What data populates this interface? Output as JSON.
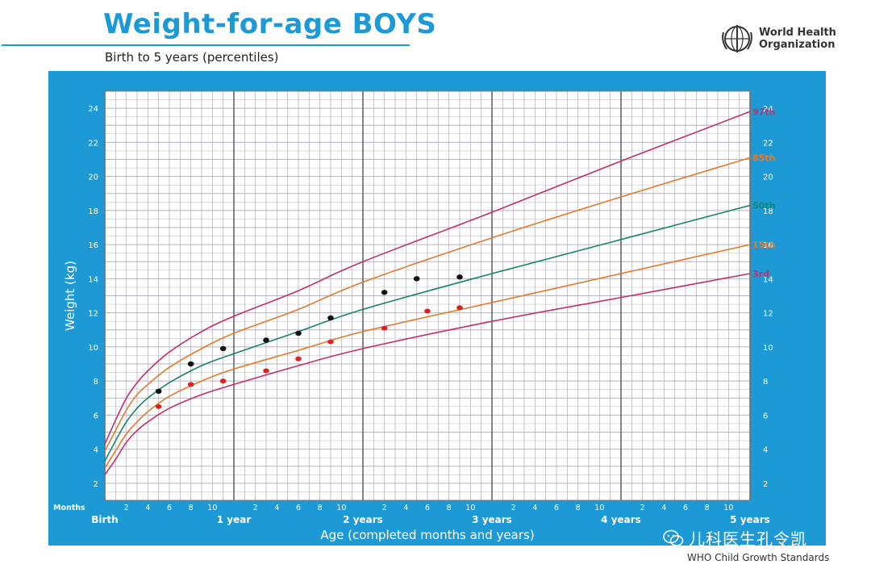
{
  "header": {
    "title": "Weight-for-age BOYS",
    "subtitle": "Birth to 5 years (percentiles)",
    "org_line1": "World Health",
    "org_line2": "Organization"
  },
  "footer": {
    "standards": "WHO Child Growth Standards",
    "watermark": "儿科医生孔令凯"
  },
  "colors": {
    "panel": "#1d9ad6",
    "grid": "#b9b0c0",
    "p3": "#c0306a",
    "p15": "#e07b2e",
    "p50": "#17836a",
    "p85": "#e07b2e",
    "p97": "#c0306a",
    "measure_black": "#111111",
    "measure_red": "#e02020"
  },
  "chart_data": {
    "type": "line",
    "title": "Weight-for-age BOYS",
    "xlabel": "Age (completed months and years)",
    "ylabel": "Weight (kg)",
    "xlim": [
      0,
      60
    ],
    "ylim": [
      1,
      25
    ],
    "grid": true,
    "months_label": "Months",
    "y_ticks": [
      2,
      4,
      6,
      8,
      10,
      12,
      14,
      16,
      18,
      20,
      22,
      24
    ],
    "x_month_ticks": [
      {
        "x": 2,
        "label": "2"
      },
      {
        "x": 4,
        "label": "4"
      },
      {
        "x": 6,
        "label": "6"
      },
      {
        "x": 8,
        "label": "8"
      },
      {
        "x": 10,
        "label": "10"
      },
      {
        "x": 14,
        "label": "2"
      },
      {
        "x": 16,
        "label": "4"
      },
      {
        "x": 18,
        "label": "6"
      },
      {
        "x": 20,
        "label": "8"
      },
      {
        "x": 22,
        "label": "10"
      },
      {
        "x": 26,
        "label": "2"
      },
      {
        "x": 28,
        "label": "4"
      },
      {
        "x": 30,
        "label": "6"
      },
      {
        "x": 32,
        "label": "8"
      },
      {
        "x": 34,
        "label": "10"
      },
      {
        "x": 38,
        "label": "2"
      },
      {
        "x": 40,
        "label": "4"
      },
      {
        "x": 42,
        "label": "6"
      },
      {
        "x": 44,
        "label": "8"
      },
      {
        "x": 46,
        "label": "10"
      },
      {
        "x": 50,
        "label": "2"
      },
      {
        "x": 52,
        "label": "4"
      },
      {
        "x": 54,
        "label": "6"
      },
      {
        "x": 56,
        "label": "8"
      },
      {
        "x": 58,
        "label": "10"
      }
    ],
    "x_year_labels": [
      {
        "x": 0,
        "label": "Birth"
      },
      {
        "x": 12,
        "label": "1 year"
      },
      {
        "x": 24,
        "label": "2 years"
      },
      {
        "x": 36,
        "label": "3 years"
      },
      {
        "x": 48,
        "label": "4 years"
      },
      {
        "x": 60,
        "label": "5 years"
      }
    ],
    "x": [
      0,
      1,
      2,
      3,
      4,
      6,
      9,
      12,
      18,
      24,
      36,
      48,
      60
    ],
    "series": [
      {
        "name": "97th",
        "color_key": "p97",
        "values": [
          4.3,
          5.7,
          7.0,
          7.9,
          8.6,
          9.7,
          10.9,
          11.8,
          13.3,
          15.0,
          17.9,
          20.9,
          23.8
        ]
      },
      {
        "name": "85th",
        "color_key": "p85",
        "values": [
          3.9,
          5.1,
          6.3,
          7.2,
          7.8,
          8.8,
          9.9,
          10.8,
          12.2,
          13.8,
          16.4,
          18.8,
          21.1
        ]
      },
      {
        "name": "50th",
        "color_key": "p50",
        "values": [
          3.3,
          4.5,
          5.6,
          6.4,
          7.0,
          7.9,
          8.9,
          9.6,
          10.9,
          12.2,
          14.3,
          16.3,
          18.3
        ]
      },
      {
        "name": "15th",
        "color_key": "p15",
        "values": [
          2.9,
          3.9,
          4.9,
          5.6,
          6.2,
          7.1,
          8.0,
          8.7,
          9.8,
          10.9,
          12.6,
          14.3,
          16.0
        ]
      },
      {
        "name": "3rd",
        "color_key": "p3",
        "values": [
          2.5,
          3.4,
          4.4,
          5.1,
          5.6,
          6.4,
          7.2,
          7.8,
          8.9,
          9.9,
          11.5,
          12.9,
          14.3
        ]
      }
    ],
    "measurements_black": [
      {
        "x": 5,
        "y": 7.4
      },
      {
        "x": 8,
        "y": 9.0
      },
      {
        "x": 11,
        "y": 9.9
      },
      {
        "x": 15,
        "y": 10.4
      },
      {
        "x": 18,
        "y": 10.8
      },
      {
        "x": 21,
        "y": 11.7
      },
      {
        "x": 26,
        "y": 13.2
      },
      {
        "x": 29,
        "y": 14.0
      },
      {
        "x": 33,
        "y": 14.1
      }
    ],
    "measurements_red": [
      {
        "x": 5,
        "y": 6.5
      },
      {
        "x": 8,
        "y": 7.8
      },
      {
        "x": 11,
        "y": 8.0
      },
      {
        "x": 15,
        "y": 8.6
      },
      {
        "x": 18,
        "y": 9.3
      },
      {
        "x": 21,
        "y": 10.3
      },
      {
        "x": 26,
        "y": 11.1
      },
      {
        "x": 30,
        "y": 12.1
      },
      {
        "x": 33,
        "y": 12.3
      }
    ]
  }
}
